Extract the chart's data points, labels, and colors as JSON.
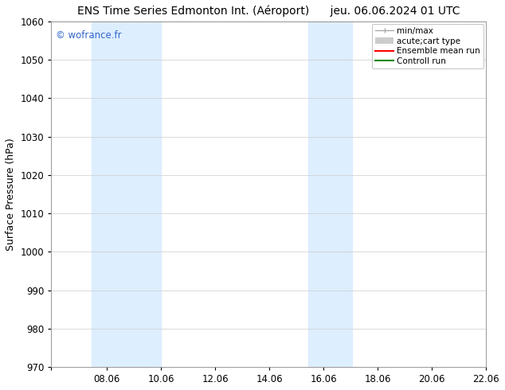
{
  "title": "ENS Time Series Edmonton Int. (Aéroport)      jeu. 06.06.2024 01 UTC",
  "ylabel": "Surface Pressure (hPa)",
  "ylim": [
    970,
    1060
  ],
  "yticks": [
    970,
    980,
    990,
    1000,
    1010,
    1020,
    1030,
    1040,
    1050,
    1060
  ],
  "xlim_start": 6.0,
  "xlim_end": 22.06,
  "xticks": [
    6.0,
    8.06,
    10.06,
    12.06,
    14.06,
    16.06,
    18.06,
    20.06,
    22.06
  ],
  "xticklabels": [
    "",
    "08.06",
    "10.06",
    "12.06",
    "14.06",
    "16.06",
    "18.06",
    "20.06",
    "22.06"
  ],
  "shaded_bands": [
    {
      "x_start": 7.5,
      "x_end": 10.06,
      "color": "#ddeeff"
    },
    {
      "x_start": 15.5,
      "x_end": 17.1,
      "color": "#ddeeff"
    }
  ],
  "watermark": "© wofrance.fr",
  "watermark_color": "#3366cc",
  "legend_labels": [
    "min/max",
    "acute;cart type",
    "Ensemble mean run",
    "Controll run"
  ],
  "legend_colors": [
    "#aaaaaa",
    "#cccccc",
    "#ff0000",
    "#008800"
  ],
  "background_color": "#ffffff",
  "title_fontsize": 10,
  "tick_fontsize": 8.5,
  "ylabel_fontsize": 9
}
